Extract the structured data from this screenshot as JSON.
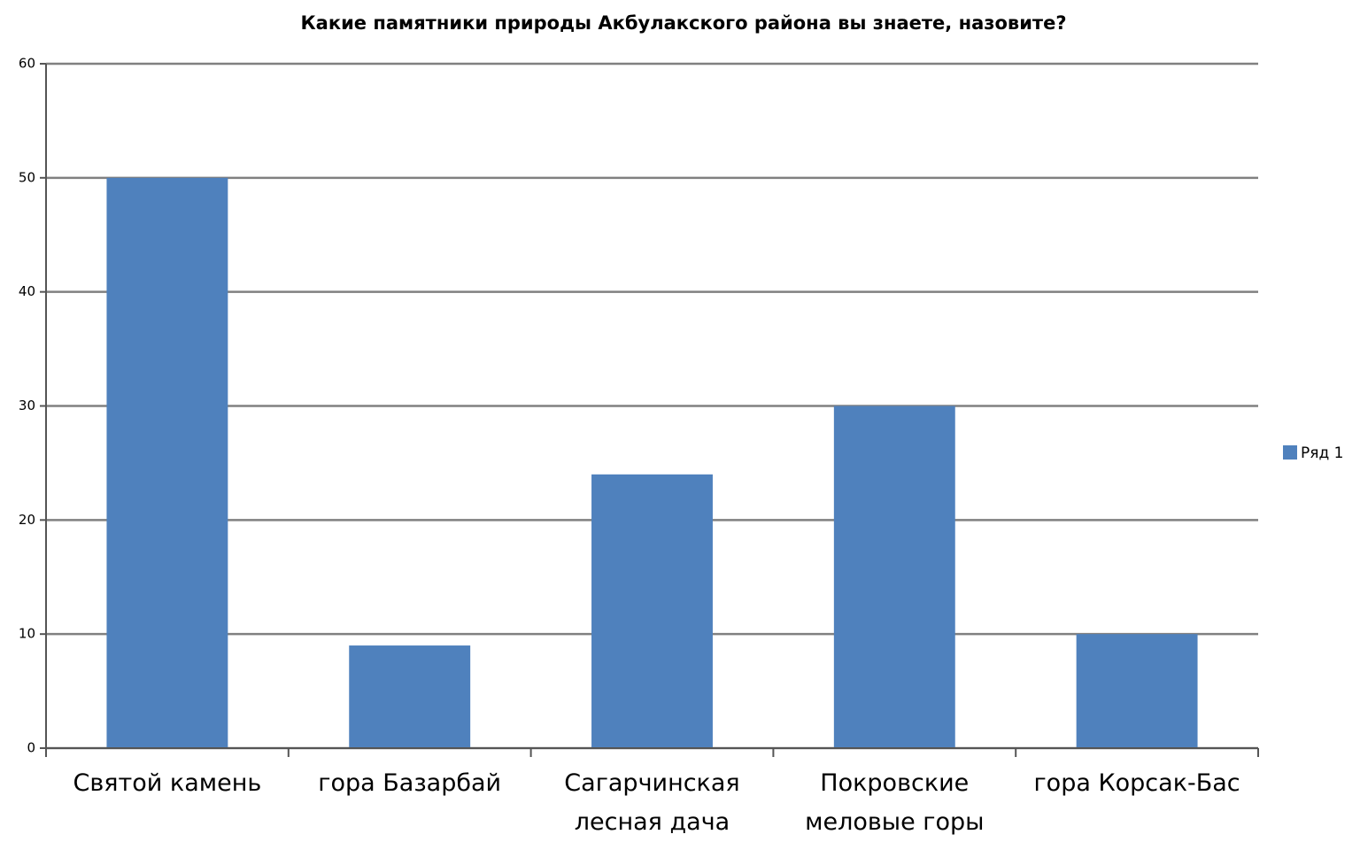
{
  "chart_data": {
    "type": "bar",
    "title": "Какие памятники природы Акбулакского района вы знаете, назовите?",
    "categories": [
      "Святой камень",
      "гора Базарбай",
      "Сагарчинская лесная дача",
      "Покровские меловые горы",
      "гора Корсак-Бас"
    ],
    "series": [
      {
        "name": "Ряд 1",
        "color": "#4f81bd",
        "values": [
          50,
          9,
          24,
          30,
          10
        ]
      }
    ],
    "ylim": [
      0,
      60
    ],
    "yticks": [
      0,
      10,
      20,
      30,
      40,
      50,
      60
    ],
    "grid": true,
    "legend": "right"
  }
}
